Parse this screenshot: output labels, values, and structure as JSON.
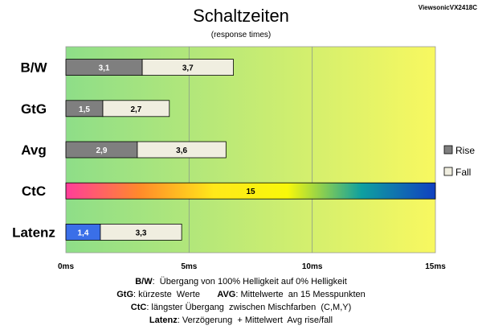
{
  "brand": "ViewsonicVX2418C",
  "chart_data": {
    "type": "bar",
    "orientation": "horizontal",
    "stacked": true,
    "title": "Schaltzeiten",
    "subtitle": "(response times)",
    "categories": [
      "B/W",
      "GtG",
      "Avg",
      "CtC",
      "Latenz"
    ],
    "series": [
      {
        "name": "Rise",
        "values": [
          3.1,
          1.5,
          2.9,
          15,
          1.4
        ],
        "labels": [
          "3,1",
          "1,5",
          "2,9",
          "15",
          "1,4"
        ]
      },
      {
        "name": "Fall",
        "values": [
          3.7,
          2.7,
          3.6,
          0,
          3.3
        ],
        "labels": [
          "3,7",
          "2,7",
          "3,6",
          "",
          "3,3"
        ]
      }
    ],
    "xlim": [
      0,
      15
    ],
    "xticks": [
      0,
      5,
      10,
      15
    ],
    "xtick_labels": [
      "0ms",
      "5ms",
      "10ms",
      "15ms"
    ],
    "grid": true,
    "legend_position": "right",
    "colors": {
      "rise": "#7f7f7f",
      "fall": "#f0eee0",
      "latenz_rise": "#3a6fe8",
      "background_gradient": [
        "#8ede88",
        "#f8f860"
      ],
      "ctc_gradient": [
        "#ff3d9a",
        "#ff8a2a",
        "#ffe81a",
        "#f8f80a",
        "#0fa0a0",
        "#1040c0"
      ]
    }
  },
  "notes": [
    [
      {
        "b": true,
        "t": "B/W"
      },
      {
        "b": false,
        "t": ":  Übergang von 100% Helligkeit auf 0% Helligkeit"
      }
    ],
    [
      {
        "b": true,
        "t": "GtG"
      },
      {
        "b": false,
        "t": ": kürzeste  Werte       "
      },
      {
        "b": true,
        "t": "AVG"
      },
      {
        "b": false,
        "t": ": Mittelwerte  an 15 Messpunkten"
      }
    ],
    [
      {
        "b": true,
        "t": "CtC"
      },
      {
        "b": false,
        "t": ": längster Übergang  zwischen Mischfarben  (C,M,Y)"
      }
    ],
    [
      {
        "b": true,
        "t": "Latenz"
      },
      {
        "b": false,
        "t": ": Verzögerung  + Mittelwert  Avg rise/fall"
      }
    ]
  ]
}
